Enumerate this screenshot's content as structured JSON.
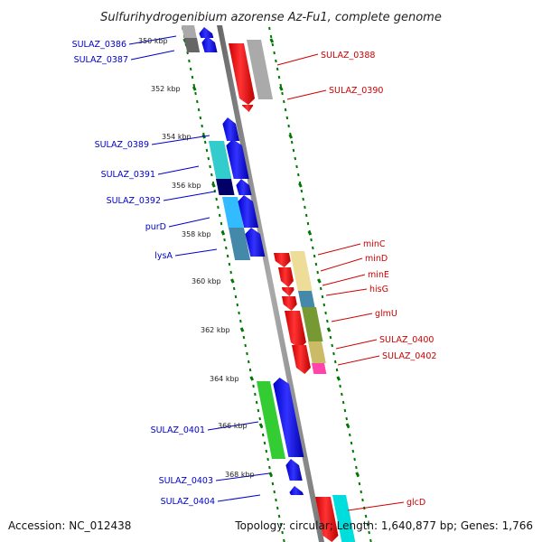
{
  "title": "Sulfurihydrogenibium azorense Az-Fu1, complete genome",
  "footer": {
    "accession": "Accession: NC_012438",
    "summary": "Topology: circular; Length: 1,640,877 bp; Genes: 1,766"
  },
  "ticks": [
    "350 kbp",
    "352 kbp",
    "354 kbp",
    "356 kbp",
    "358 kbp",
    "360 kbp",
    "362 kbp",
    "364 kbp",
    "366 kbp",
    "368 kbp"
  ],
  "left_labels": [
    {
      "text": "SULAZ_0386",
      "color": "#0000cc"
    },
    {
      "text": "SULAZ_0387",
      "color": "#0000cc"
    },
    {
      "text": "SULAZ_0389",
      "color": "#0000cc"
    },
    {
      "text": "SULAZ_0391",
      "color": "#0000cc"
    },
    {
      "text": "SULAZ_0392",
      "color": "#0000cc"
    },
    {
      "text": "purD",
      "color": "#0000cc"
    },
    {
      "text": "lysA",
      "color": "#0000cc"
    },
    {
      "text": "SULAZ_0401",
      "color": "#0000cc"
    },
    {
      "text": "SULAZ_0403",
      "color": "#0000cc"
    },
    {
      "text": "SULAZ_0404",
      "color": "#0000cc"
    }
  ],
  "right_labels": [
    {
      "text": "SULAZ_0388",
      "color": "#cc0000"
    },
    {
      "text": "SULAZ_0390",
      "color": "#cc0000"
    },
    {
      "text": "minC",
      "color": "#cc0000"
    },
    {
      "text": "minD",
      "color": "#cc0000"
    },
    {
      "text": "minE",
      "color": "#cc0000"
    },
    {
      "text": "hisG",
      "color": "#cc0000"
    },
    {
      "text": "glmU",
      "color": "#cc0000"
    },
    {
      "text": "SULAZ_0400",
      "color": "#cc0000"
    },
    {
      "text": "SULAZ_0402",
      "color": "#cc0000"
    },
    {
      "text": "glcD",
      "color": "#cc0000"
    }
  ],
  "colors": {
    "forward_gene": "#0000ee",
    "reverse_gene": "#ee0000",
    "backbone": "#888888",
    "tick": "#007700",
    "cog_cyan": "#33cccc",
    "cog_gray": "#aaaaaa",
    "cog_navy": "#000066",
    "cog_skyblue": "#33bbff",
    "cog_steel": "#4488aa",
    "cog_tan": "#eedd99",
    "cog_olive": "#779933",
    "cog_khaki": "#ccbb66",
    "cog_magenta": "#ff44aa",
    "cog_green": "#33cc33"
  }
}
